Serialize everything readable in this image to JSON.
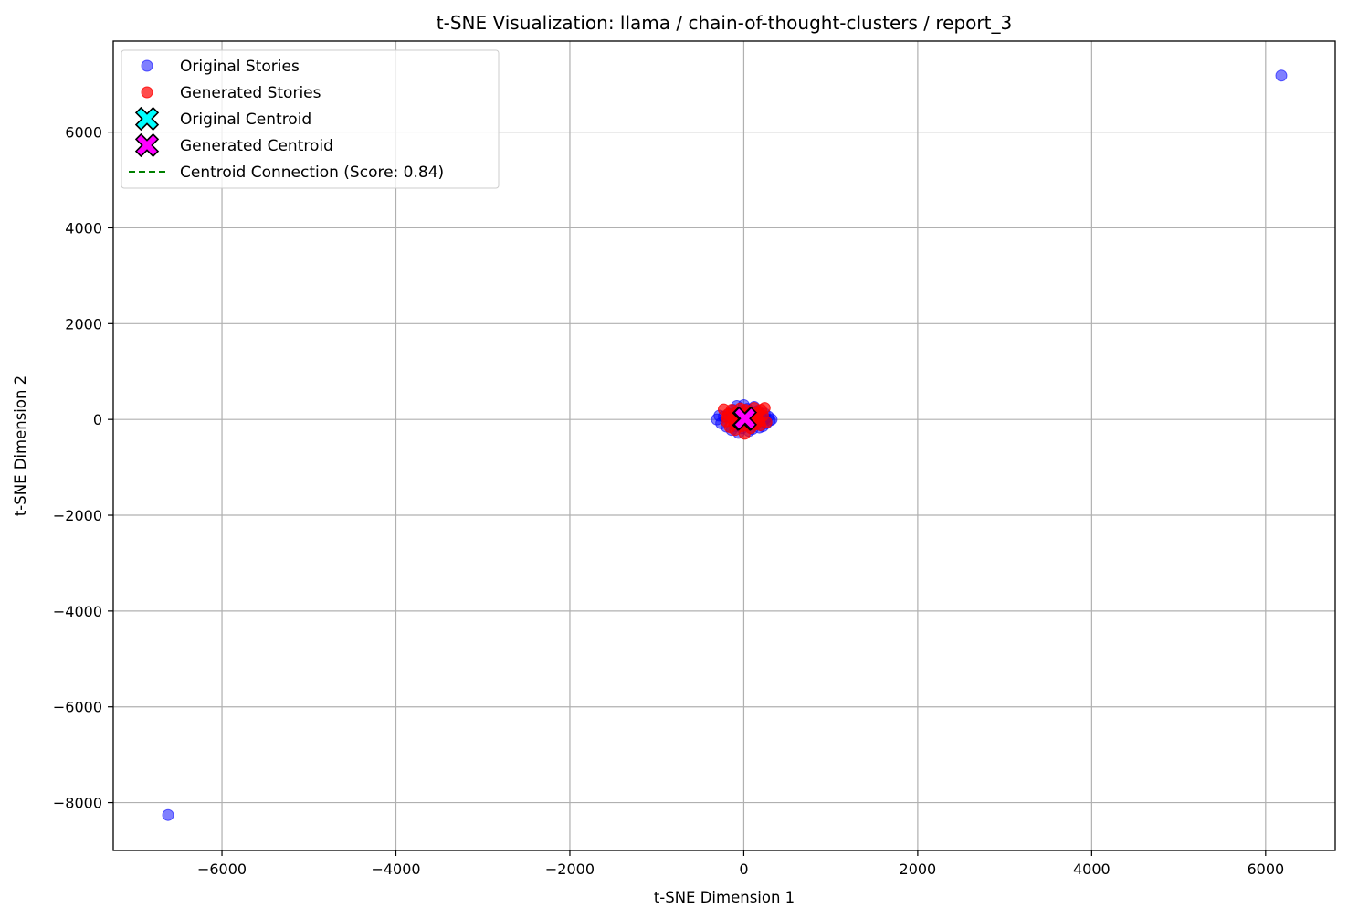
{
  "chart_data": {
    "type": "scatter",
    "title": "t-SNE Visualization: llama / chain-of-thought-clusters / report_3",
    "xlabel": "t-SNE Dimension 1",
    "ylabel": "t-SNE Dimension 2",
    "xlim": [
      -7250,
      6800
    ],
    "ylim": [
      -9000,
      7900
    ],
    "xticks": [
      -6000,
      -4000,
      -2000,
      0,
      2000,
      4000,
      6000
    ],
    "yticks": [
      -8000,
      -6000,
      -4000,
      -2000,
      0,
      2000,
      4000,
      6000
    ],
    "xtick_labels": [
      "−6000",
      "−4000",
      "−2000",
      "0",
      "2000",
      "4000",
      "6000"
    ],
    "ytick_labels": [
      "−8000",
      "−6000",
      "−4000",
      "−2000",
      "0",
      "2000",
      "4000",
      "6000"
    ],
    "grid": true,
    "legend_position": "top-left",
    "series": [
      {
        "name": "Original Stories",
        "color": "#0000ff",
        "alpha": 0.5,
        "points": [
          [
            6180,
            7180
          ],
          [
            -6620,
            -8260
          ],
          [
            -310,
            0
          ],
          [
            -260,
            -80
          ],
          [
            -230,
            60
          ],
          [
            -200,
            -150
          ],
          [
            -170,
            120
          ],
          [
            -140,
            -220
          ],
          [
            -120,
            200
          ],
          [
            -100,
            -60
          ],
          [
            -80,
            280
          ],
          [
            -60,
            -280
          ],
          [
            -40,
            140
          ],
          [
            -20,
            -180
          ],
          [
            0,
            300
          ],
          [
            20,
            -120
          ],
          [
            40,
            220
          ],
          [
            60,
            -240
          ],
          [
            80,
            90
          ],
          [
            100,
            -200
          ],
          [
            120,
            260
          ],
          [
            140,
            -100
          ],
          [
            160,
            180
          ],
          [
            180,
            -170
          ],
          [
            200,
            40
          ],
          [
            220,
            -140
          ],
          [
            240,
            120
          ],
          [
            260,
            -80
          ],
          [
            280,
            60
          ],
          [
            300,
            -20
          ],
          [
            320,
            0
          ],
          [
            -280,
            80
          ],
          [
            -150,
            40
          ],
          [
            -50,
            -40
          ],
          [
            50,
            40
          ],
          [
            150,
            -40
          ],
          [
            250,
            20
          ],
          [
            -90,
            -140
          ],
          [
            90,
            140
          ],
          [
            10,
            -60
          ],
          [
            -10,
            60
          ]
        ]
      },
      {
        "name": "Generated Stories",
        "color": "#ff0000",
        "alpha": 0.7,
        "points": [
          [
            -230,
            210
          ],
          [
            -200,
            -40
          ],
          [
            -180,
            110
          ],
          [
            -160,
            -160
          ],
          [
            -140,
            200
          ],
          [
            -120,
            30
          ],
          [
            -100,
            -220
          ],
          [
            -80,
            150
          ],
          [
            -60,
            -90
          ],
          [
            -40,
            230
          ],
          [
            -20,
            -140
          ],
          [
            0,
            100
          ],
          [
            10,
            -300
          ],
          [
            20,
            200
          ],
          [
            40,
            -60
          ],
          [
            60,
            160
          ],
          [
            80,
            -180
          ],
          [
            100,
            60
          ],
          [
            120,
            240
          ],
          [
            140,
            -100
          ],
          [
            160,
            140
          ],
          [
            180,
            -30
          ],
          [
            200,
            200
          ],
          [
            220,
            80
          ],
          [
            240,
            240
          ],
          [
            260,
            -60
          ],
          [
            -110,
            -90
          ],
          [
            -70,
            60
          ],
          [
            -30,
            -30
          ],
          [
            30,
            30
          ],
          [
            70,
            -20
          ],
          [
            110,
            20
          ],
          [
            150,
            60
          ],
          [
            190,
            -120
          ],
          [
            -190,
            40
          ]
        ]
      }
    ],
    "centroids": [
      {
        "name": "Original Centroid",
        "x": 2,
        "y": 8,
        "color": "#00ffff"
      },
      {
        "name": "Generated Centroid",
        "x": 15,
        "y": 18,
        "color": "#ff00ff"
      }
    ],
    "connection": {
      "name": "Centroid Connection (Score: 0.84)",
      "color": "#008000"
    }
  }
}
